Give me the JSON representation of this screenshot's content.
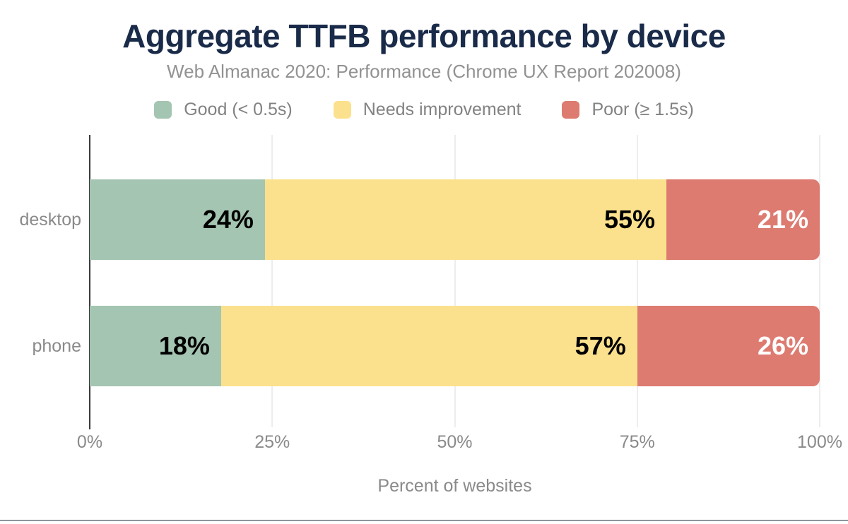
{
  "chart": {
    "title": "Aggregate TTFB performance by device",
    "subtitle": "Web Almanac 2020: Performance (Chrome UX Report 202008)",
    "xlabel": "Percent of websites"
  },
  "chart_data": {
    "type": "bar",
    "orientation": "horizontal",
    "stacked": true,
    "title": "Aggregate TTFB performance by device",
    "subtitle": "Web Almanac 2020: Performance (Chrome UX Report 202008)",
    "xlabel": "Percent of websites",
    "categories": [
      "desktop",
      "phone"
    ],
    "series": [
      {
        "name": "Good (< 0.5s)",
        "color": "#a4c5b1",
        "values": [
          24,
          18
        ]
      },
      {
        "name": "Needs improvement",
        "color": "#fbe18d",
        "values": [
          55,
          57
        ]
      },
      {
        "name": "Poor (≥ 1.5s)",
        "color": "#dd7b71",
        "values": [
          21,
          26
        ]
      }
    ],
    "value_suffix": "%",
    "xlim": [
      0,
      100
    ],
    "xticks": [
      0,
      25,
      50,
      75,
      100
    ],
    "xtick_labels": [
      "0%",
      "25%",
      "50%",
      "75%",
      "100%"
    ],
    "legend_position": "top",
    "grid": "vertical-gridlines",
    "label_color_by_series": [
      "#000000",
      "#000000",
      "#ffffff"
    ]
  },
  "colors": {
    "title_navy": "#1a2b49",
    "subtitle_gray": "#929292",
    "axis_text_gray": "#8a8a8a",
    "gridline": "#ededed",
    "axis_line": "#3b3b3b",
    "bottom_rule": "#8e959d",
    "background": "#ffffff"
  }
}
